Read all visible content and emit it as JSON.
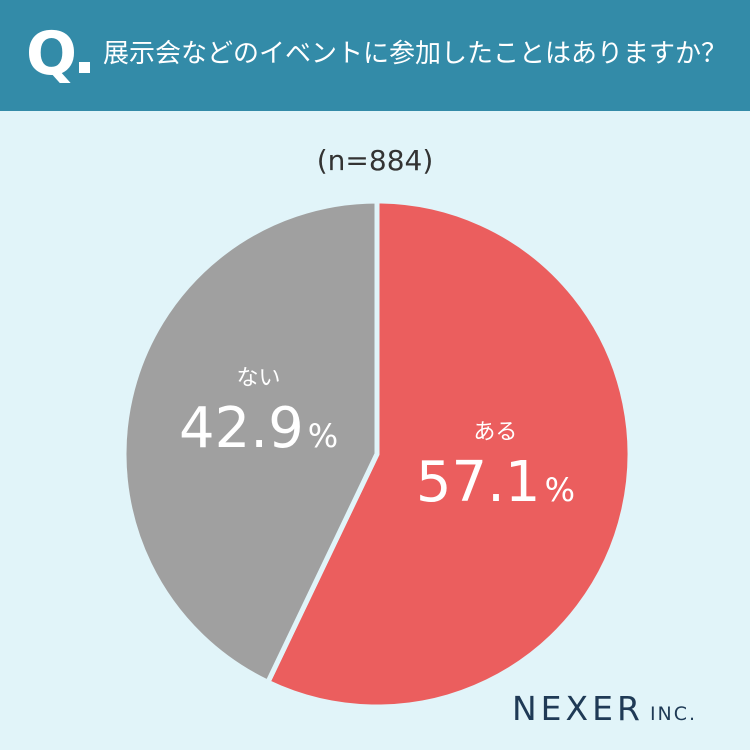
{
  "header": {
    "q_label": "Q",
    "question": "展示会などのイベントに参加したことはありますか？"
  },
  "sample_size": "(n=884)",
  "chart_data": {
    "type": "pie",
    "title": "展示会などのイベントに参加したことはありますか？",
    "n": 884,
    "slices": [
      {
        "label": "ある",
        "value": 57.1,
        "display": "57.1",
        "unit": "%",
        "color": "#eb5e5e"
      },
      {
        "label": "ない",
        "value": 42.9,
        "display": "42.9",
        "unit": "%",
        "color": "#a0a0a0"
      }
    ],
    "start": "12 o'clock",
    "direction": "clockwise"
  },
  "colors": {
    "background": "#e1f4f9",
    "header": "#338ba8",
    "label_text": "#ffffff",
    "brand": "#1f3a56"
  },
  "brand": {
    "name": "NEXER",
    "suffix": "INC."
  }
}
